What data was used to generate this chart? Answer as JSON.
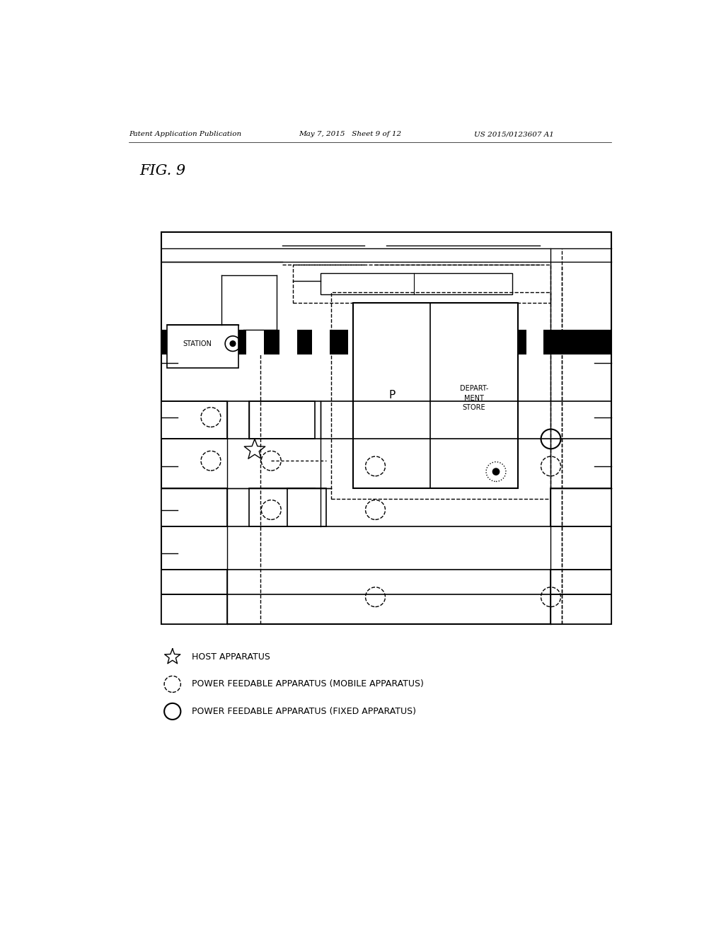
{
  "header_left": "Patent Application Publication",
  "header_mid": "May 7, 2015   Sheet 9 of 12",
  "header_right": "US 2015/0123607 A1",
  "bg_color": "#ffffff",
  "line_color": "#000000"
}
